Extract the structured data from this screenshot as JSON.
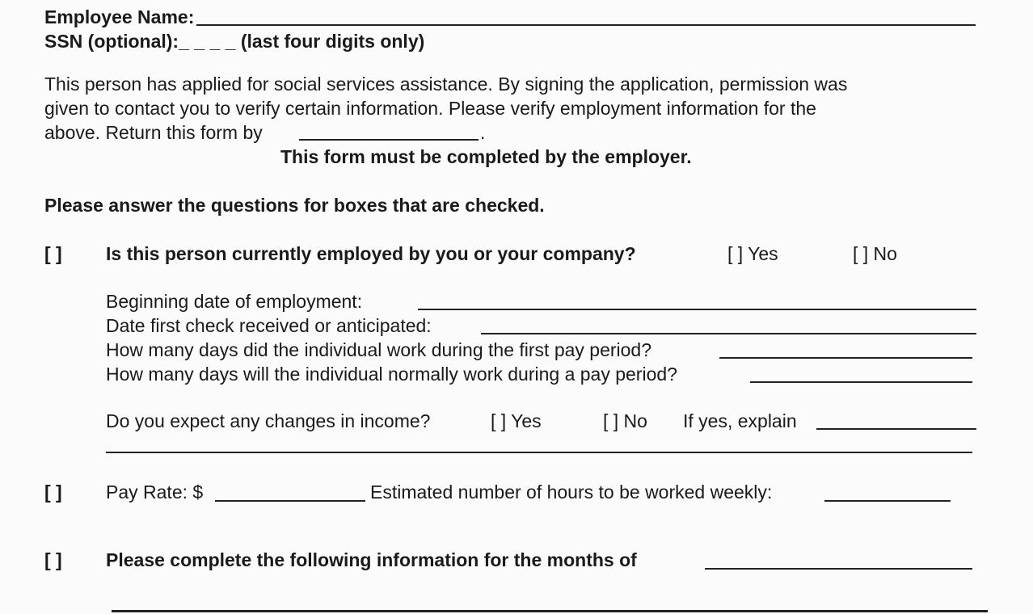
{
  "header": {
    "employee_name_label": "Employee Name:",
    "ssn_label": "SSN (optional):",
    "ssn_blank": "_ _ _ _",
    "ssn_note": "(last four digits only)"
  },
  "intro": {
    "line1": "This person has applied for social services assistance.  By signing the application, permission was",
    "line2": "given to contact you to verify certain information.  Please verify employment information for the",
    "line3": "above.  Return this form by",
    "line3_end": ".",
    "notice": "This form must be completed by the employer."
  },
  "instructions": "Please answer the questions for boxes that are checked.",
  "checkbox": "[  ]",
  "section1": {
    "question": "Is this person currently employed by you or your company?",
    "yes": "[ ] Yes",
    "no": "[ ] No",
    "fields": [
      "Beginning date of employment:",
      "Date first check received or anticipated:",
      "How many days did the individual work during the first pay period?",
      "How many days will the individual normally work during a pay period?"
    ],
    "changes_question": "Do you expect any changes in income?",
    "changes_yes": "[ ] Yes",
    "changes_no": "[ ] No",
    "explain": "If yes, explain"
  },
  "section2": {
    "pay_rate": "Pay Rate: $",
    "hours": "Estimated number of hours to be worked weekly:"
  },
  "section3": {
    "months": "Please complete the following information for the months of"
  }
}
